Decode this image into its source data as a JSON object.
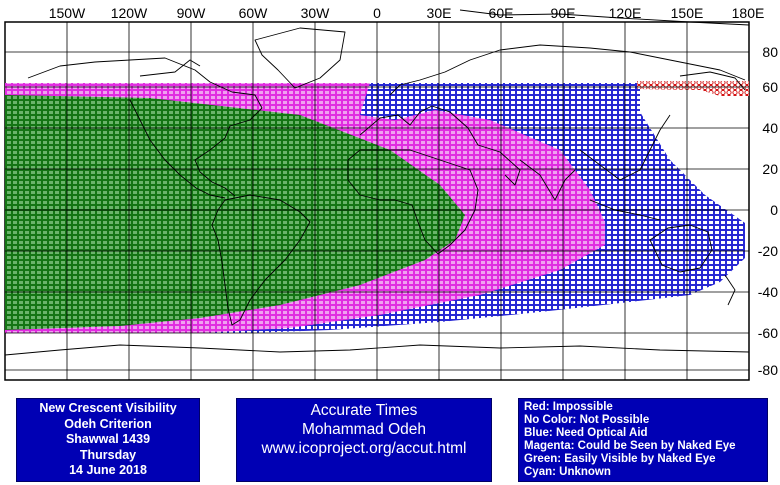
{
  "map": {
    "top_labels": [
      "150W",
      "120W",
      "90W",
      "60W",
      "30W",
      "0",
      "30E",
      "60E",
      "90E",
      "120E",
      "150E",
      "180E"
    ],
    "right_labels": [
      "80",
      "60",
      "40",
      "20",
      "0",
      "-20",
      "-40",
      "-60",
      "-80"
    ]
  },
  "info_left": [
    "New Crescent Visibility",
    "Odeh Criterion",
    "Shawwal 1439",
    "Thursday",
    "14 June 2018"
  ],
  "info_center": [
    "Accurate Times",
    "Mohammad Odeh",
    "www.icoproject.org/accut.html"
  ],
  "legend": [
    {
      "text": "Red: Impossible",
      "color": "#d00000"
    },
    {
      "text": "No Color: Not Possible",
      "color": "#ffffff"
    },
    {
      "text": "Blue: Need Optical Aid",
      "color": "#0000c8"
    },
    {
      "text": "Magenta: Could be Seen by Naked Eye",
      "color": "#ff00ff"
    },
    {
      "text": "Green: Easily Visible by Naked Eye",
      "color": "#008000"
    },
    {
      "text": "Cyan: Unknown",
      "color": "#00c8c8"
    }
  ],
  "colors": {
    "panel": "#0000b4",
    "green": "#008000",
    "magenta": "#ff00ff",
    "blue": "#0000c8",
    "red": "#d00000"
  }
}
